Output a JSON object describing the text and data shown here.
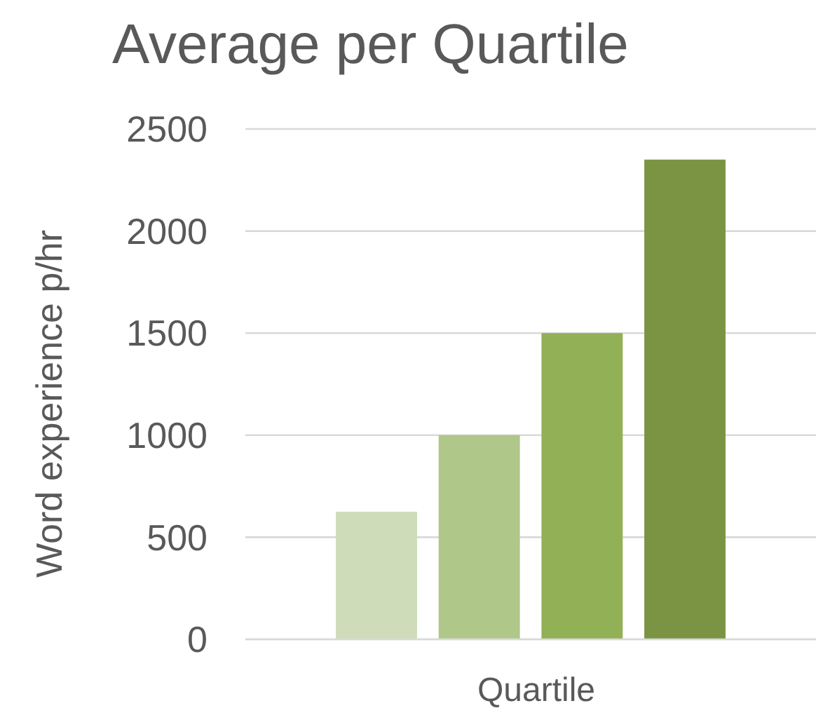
{
  "chart_data": {
    "type": "bar",
    "title": "Average per Quartile",
    "xlabel": "Quartile",
    "ylabel": "Word experience p/hr",
    "categories": [
      null,
      null,
      null,
      null
    ],
    "values": [
      625,
      1000,
      1500,
      2350
    ],
    "colors": [
      "#cfdcb9",
      "#afc788",
      "#92b055",
      "#7a9443"
    ],
    "ylim": [
      0,
      2500
    ],
    "yticks": [
      0,
      500,
      1000,
      1500,
      2000,
      2500
    ],
    "grid": "y"
  }
}
